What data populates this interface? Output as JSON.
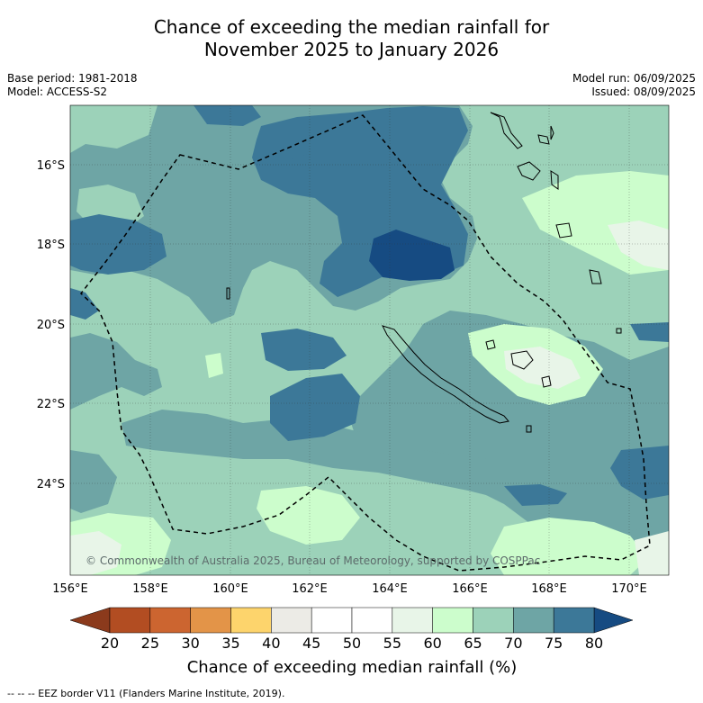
{
  "title_line1": "Chance of exceeding the median rainfall for",
  "title_line2": "November 2025 to January 2026",
  "base_period": "Base period: 1981-2018",
  "model": "Model: ACCESS-S2",
  "model_run": "Model run: 06/09/2025",
  "issued": "Issued: 08/09/2025",
  "copyright": "© Commonwealth of Australia 2025, Bureau of Meteorology, supported by COSPPac",
  "lon_ticks": [
    "156°E",
    "158°E",
    "160°E",
    "162°E",
    "164°E",
    "166°E",
    "168°E",
    "170°E"
  ],
  "lat_ticks": [
    "16°S",
    "18°S",
    "20°S",
    "22°S",
    "24°S"
  ],
  "colorbar": {
    "title": "Chance of exceeding median rainfall (%)",
    "ticks": [
      "20",
      "25",
      "30",
      "35",
      "40",
      "45",
      "50",
      "55",
      "60",
      "65",
      "70",
      "75",
      "80"
    ],
    "colors": [
      "#b24d22",
      "#cc6530",
      "#e39448",
      "#fdd46c",
      "#ecebe6",
      "#ffffff",
      "#ffffff",
      "#e8f5e8",
      "#ccfdcc",
      "#9cd2b9",
      "#6ea5a5",
      "#3c7898"
    ],
    "under_color": "#8b3a1c",
    "over_color": "#164b82"
  },
  "footer": "--  --  -- EEZ border V11 (Flanders Marine Institute, 2019).",
  "map_colors": {
    "c60_65": "#ccfdcc",
    "c65_70": "#9cd2b9",
    "c70_75": "#6ea5a5",
    "c75_80": "#3c7898",
    "c80": "#164b82",
    "c55_60": "#e8f5e8"
  }
}
